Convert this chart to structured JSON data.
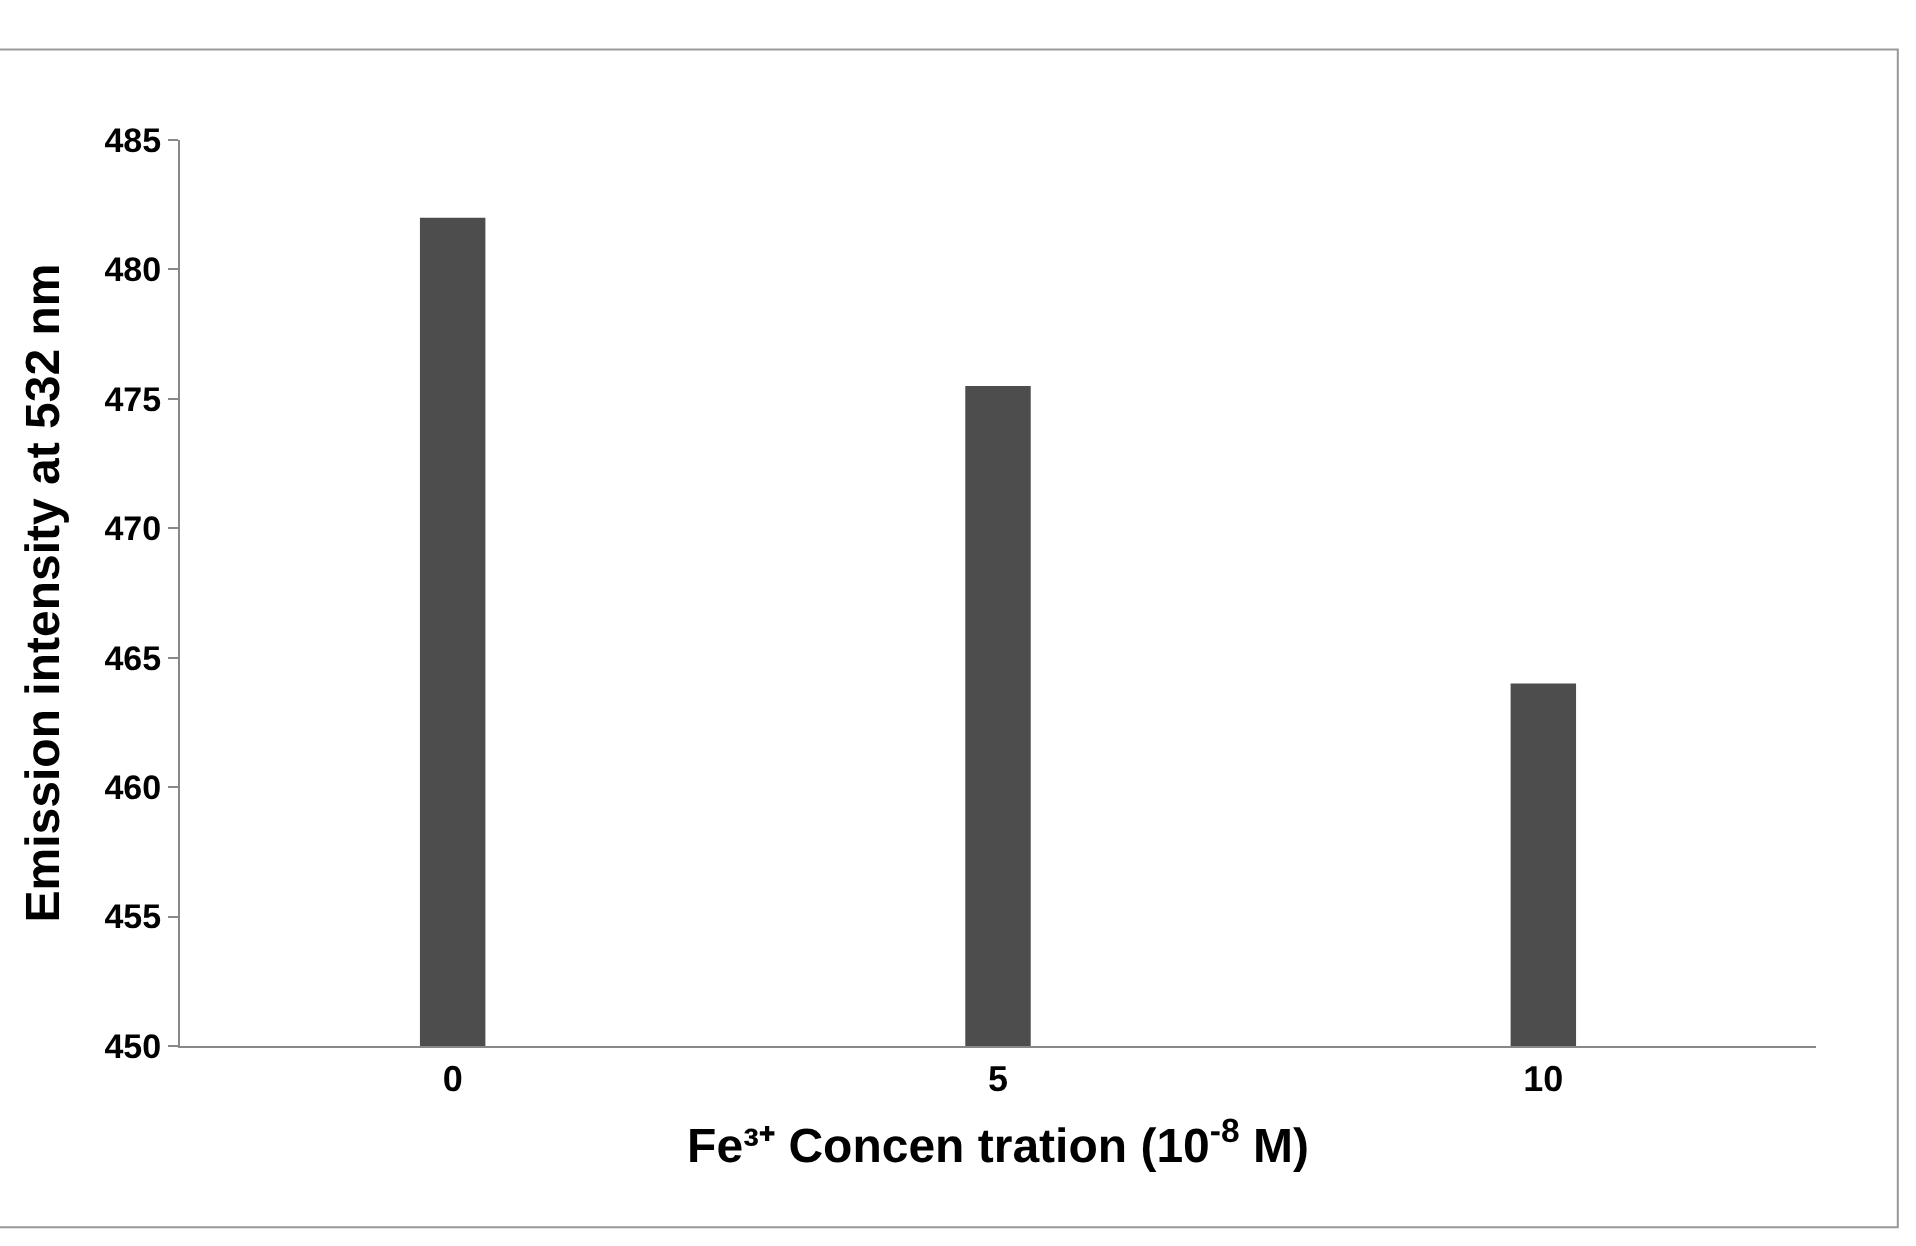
{
  "chart_data": {
    "type": "bar",
    "categories": [
      "0",
      "5",
      "10"
    ],
    "values": [
      482,
      475.5,
      464
    ],
    "color": "#4d4d4d",
    "xlabel": "Fe³⁺ Concen tration (10$^{-8}$ M)",
    "ylabel": "Emission intensity at 532 nm",
    "ylim": [
      450,
      485
    ],
    "yticks": [
      450,
      455,
      460,
      465,
      470,
      475,
      480,
      485
    ]
  }
}
